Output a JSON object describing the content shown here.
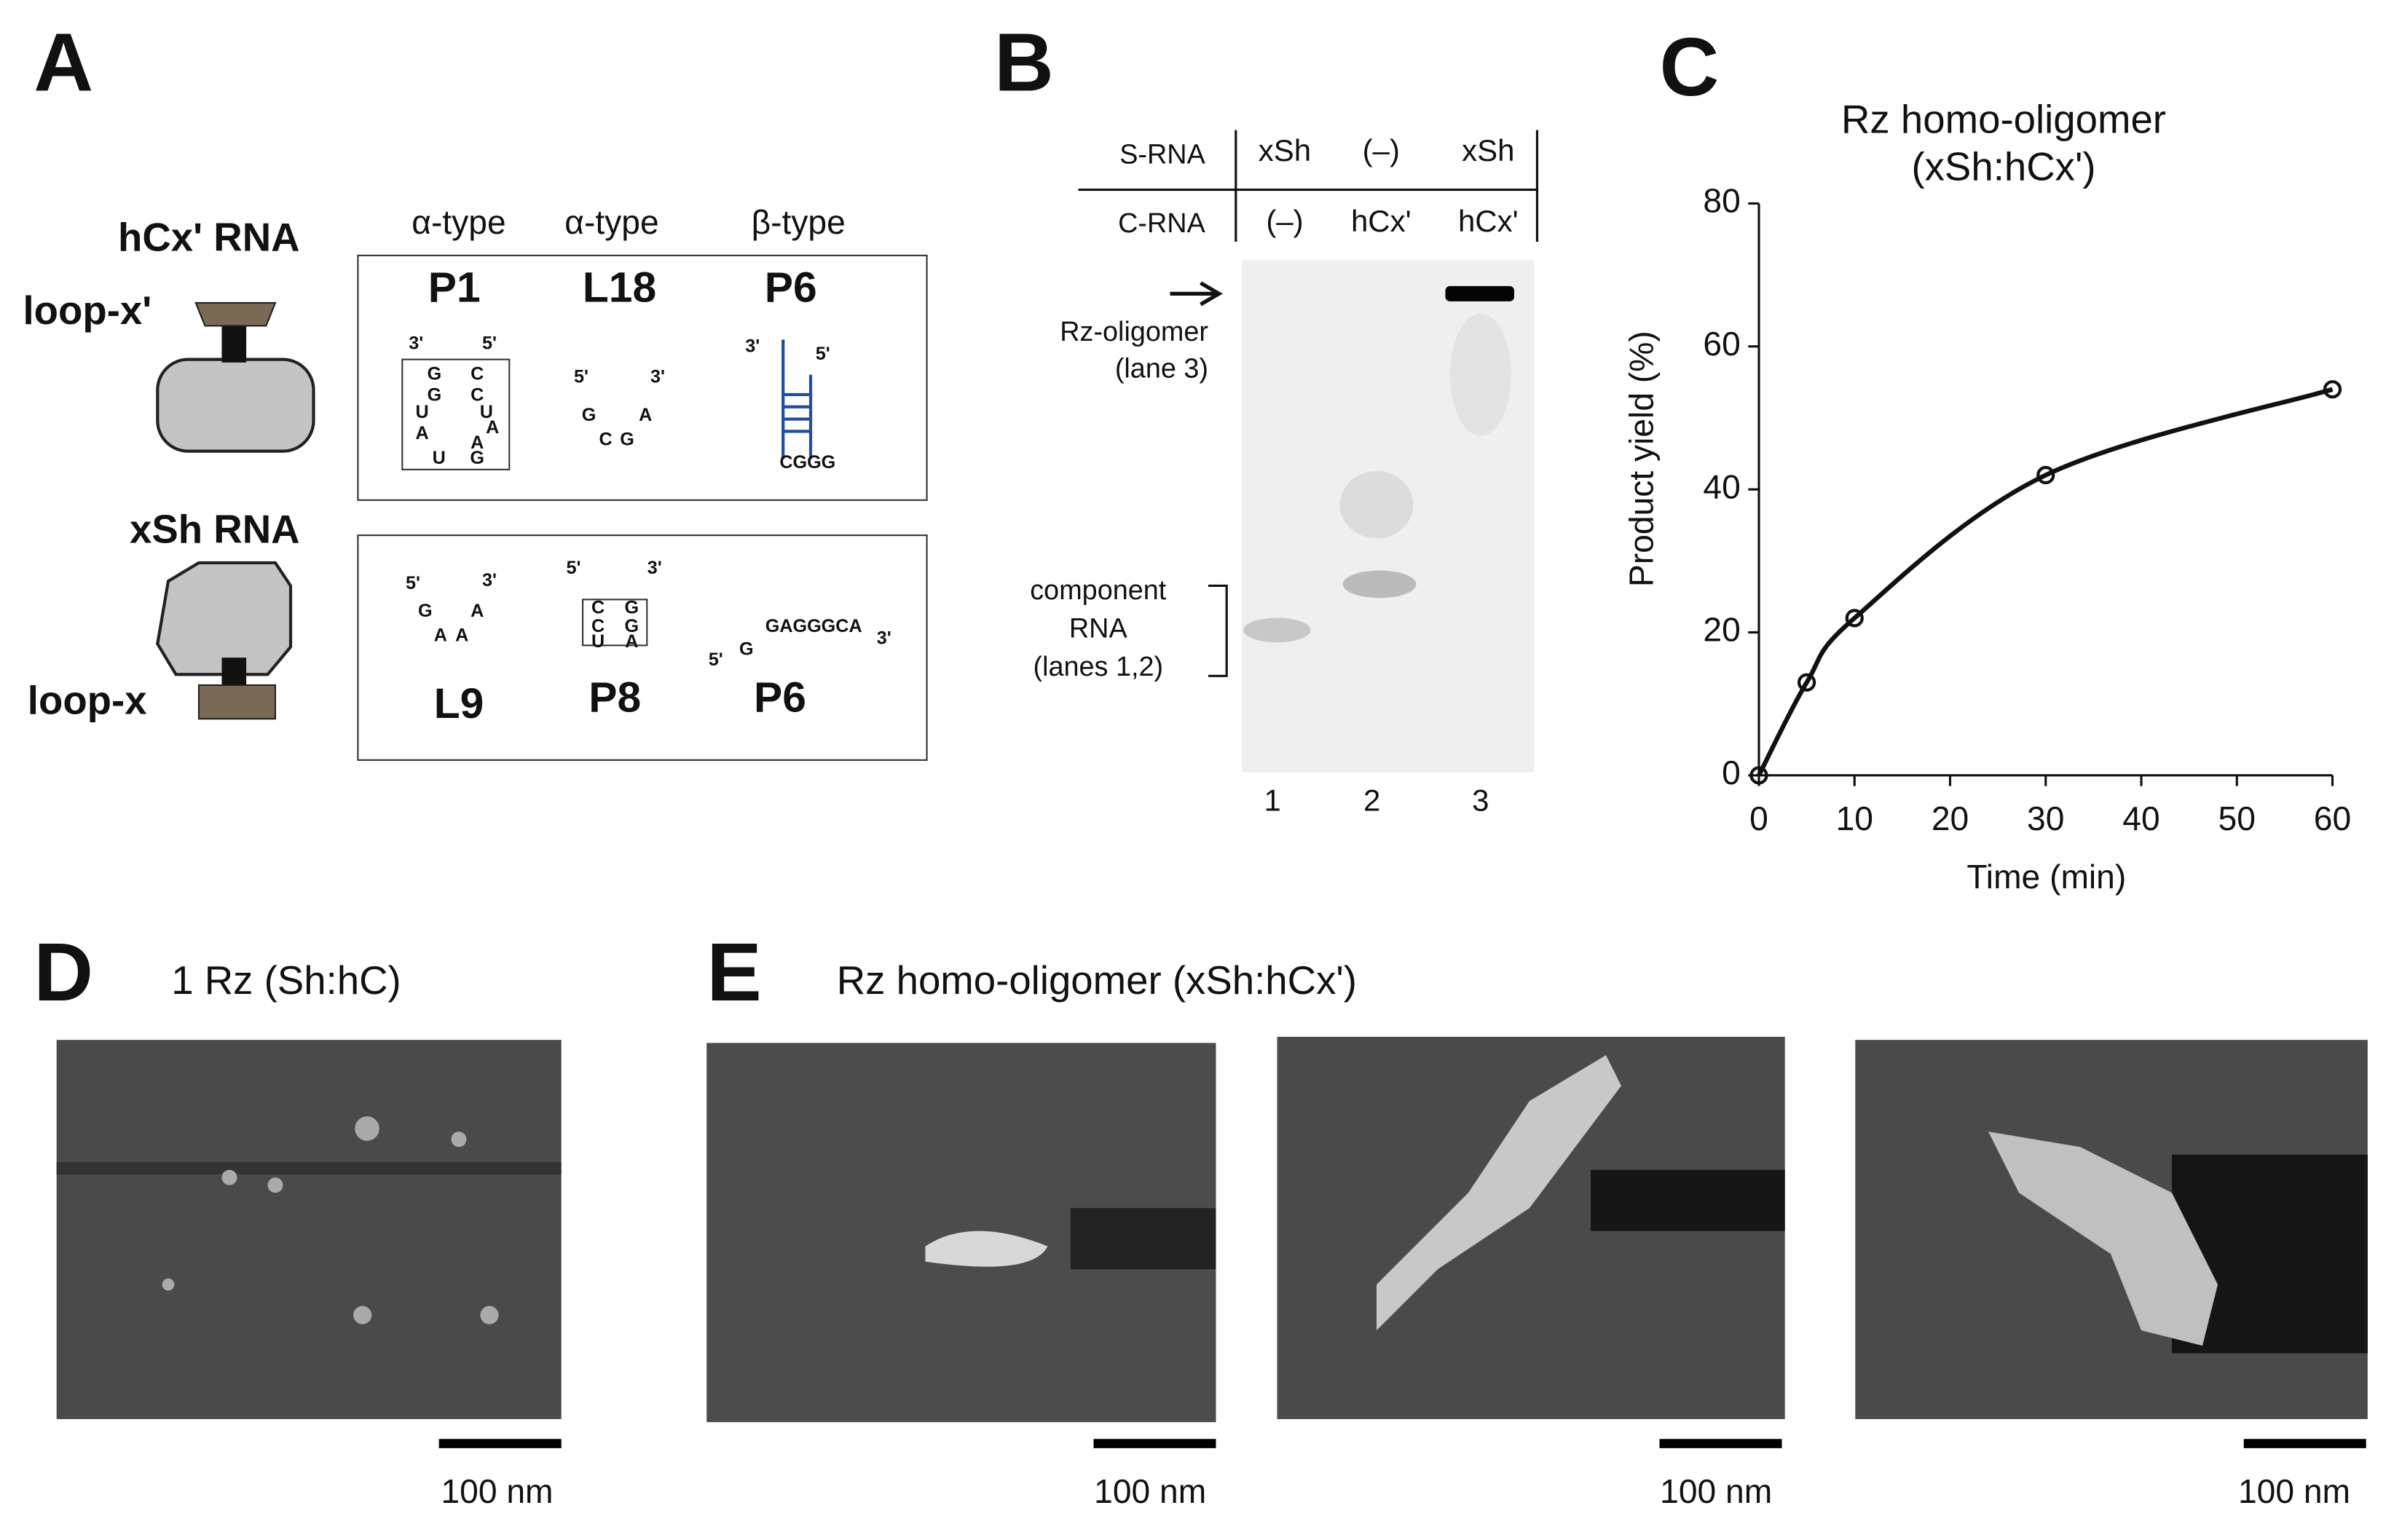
{
  "panel_a": {
    "label": "A",
    "hcx_title": "hCx' RNA",
    "loop_x_prime": "loop-x'",
    "xsh_title": "xSh RNA",
    "loop_x": "loop-x",
    "types": [
      "α-type",
      "α-type",
      "β-type"
    ],
    "top_labels": [
      "P1",
      "L18",
      "P6"
    ],
    "bottom_labels": [
      "L9",
      "P8",
      "P6"
    ],
    "p1_seq": [
      "3'",
      "5'",
      "G",
      "C",
      "G",
      "C",
      "U",
      "U",
      "A",
      "A",
      "A",
      "U",
      "G"
    ],
    "l18_seq": [
      "5'",
      "3'",
      "G",
      "A",
      "C",
      "G"
    ],
    "p6_top_seq": [
      "3'",
      "5'",
      "CGGG"
    ],
    "l9_seq": [
      "5'",
      "3'",
      "G",
      "A",
      "A",
      "A"
    ],
    "p8_seq": [
      "5'",
      "3'",
      "C",
      "G",
      "C",
      "G",
      "U",
      "A"
    ],
    "p6_bottom_seq": [
      "5'",
      "3'",
      "G",
      "GAGGGCA"
    ]
  },
  "panel_b": {
    "label": "B",
    "row_headers": [
      "S-RNA",
      "C-RNA"
    ],
    "s_rna": [
      "xSh",
      "(–)",
      "xSh"
    ],
    "c_rna": [
      "(–)",
      "hCx'",
      "hCx'"
    ],
    "oligomer_label": [
      "Rz-oligomer",
      "(lane 3)"
    ],
    "component_label": [
      "component",
      "RNA",
      "(lanes 1,2)"
    ],
    "lanes": [
      "1",
      "2",
      "3"
    ]
  },
  "chart_data": {
    "type": "line",
    "label": "C",
    "title": "Rz homo-oligomer",
    "subtitle": "(xSh:hCx')",
    "x": [
      0,
      5,
      10,
      30,
      60
    ],
    "values": [
      0,
      13,
      22,
      42,
      54
    ],
    "color": "#111111",
    "xlim": [
      0,
      60
    ],
    "xticks": [
      0,
      10,
      20,
      30,
      40,
      50,
      60
    ],
    "ylim": [
      0,
      80
    ],
    "yticks": [
      0,
      20,
      40,
      60,
      80
    ],
    "x_label": "Time (min)",
    "y_label": "Product yield (%)"
  },
  "panel_d": {
    "label": "D",
    "title": "1 Rz (Sh:hC)",
    "scale": "100 nm"
  },
  "panel_e": {
    "label": "E",
    "title": "Rz homo-oligomer (xSh:hCx')",
    "scales": [
      "100 nm",
      "100 nm",
      "100 nm"
    ]
  }
}
